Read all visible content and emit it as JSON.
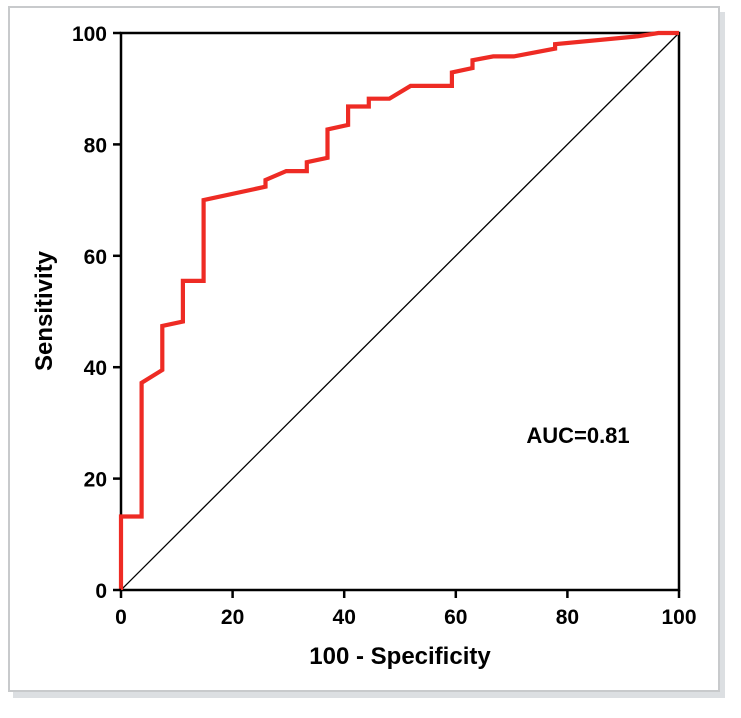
{
  "chart_data": {
    "type": "line",
    "title": "",
    "xlabel": "100 - Specificity",
    "ylabel": "Sensitivity",
    "xlim": [
      0,
      100
    ],
    "ylim": [
      0,
      100
    ],
    "xticks": [
      0,
      20,
      40,
      60,
      80,
      100
    ],
    "yticks": [
      0,
      20,
      40,
      60,
      80,
      100
    ],
    "grid": false,
    "legend": "none",
    "annotation": "AUC=0.81",
    "reference_line": {
      "x": [
        0,
        100
      ],
      "y": [
        0,
        100
      ],
      "color": "#000000"
    },
    "series": [
      {
        "color": "#ee2b24",
        "x": [
          0,
          0,
          3.7,
          3.7,
          7.4,
          7.4,
          11.1,
          11.1,
          14.8,
          14.8,
          25.9,
          25.9,
          29.6,
          33.3,
          33.3,
          37.0,
          37.0,
          40.7,
          40.7,
          44.4,
          44.4,
          48.1,
          51.9,
          59.3,
          59.3,
          63.0,
          63.0,
          66.7,
          70.4,
          77.8,
          77.8,
          92.6,
          92.6,
          96.3,
          100
        ],
        "y": [
          0,
          13.2,
          13.2,
          37.2,
          39.5,
          47.4,
          48.2,
          55.5,
          55.5,
          70.0,
          72.4,
          73.6,
          75.2,
          75.2,
          76.8,
          77.6,
          82.7,
          83.5,
          86.8,
          86.8,
          88.2,
          88.2,
          90.5,
          90.5,
          92.9,
          93.7,
          95.1,
          95.8,
          95.8,
          97.2,
          98.0,
          99.4,
          99.4,
          100,
          100
        ]
      }
    ]
  }
}
